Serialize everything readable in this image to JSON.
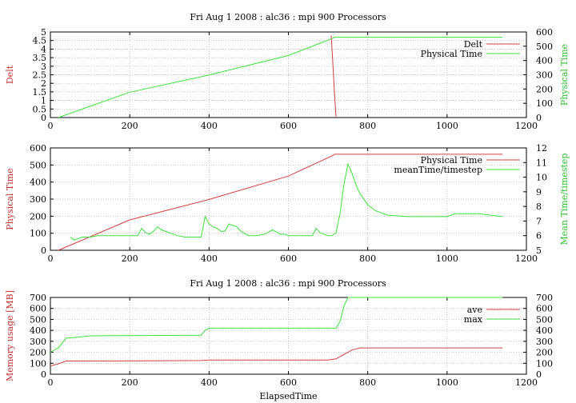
{
  "colors": {
    "red": "#d04040",
    "green": "#40e040",
    "red_label": "#c03030",
    "green_label": "#30c030"
  },
  "chart_data": [
    {
      "type": "line",
      "title": "Fri Aug 1 2008 : alc36 : mpi 900 Processors",
      "xlabel": "",
      "ylabel": "Delt",
      "y2label": "Physical Time",
      "xlim": [
        0,
        1200
      ],
      "ylim": [
        0,
        5
      ],
      "y2lim": [
        0,
        600
      ],
      "xticks": [
        0,
        200,
        400,
        600,
        800,
        1000,
        1200
      ],
      "yticks": [
        0,
        0.5,
        1,
        1.5,
        2,
        2.5,
        3,
        3.5,
        4,
        4.5,
        5
      ],
      "y2ticks": [
        0,
        100,
        200,
        300,
        400,
        500,
        600
      ],
      "grid": true,
      "legend": "top-right",
      "series": [
        {
          "name": "Delt",
          "color": "red",
          "axis": "y",
          "x": [
            708,
            712,
            716,
            720
          ],
          "y": [
            4.8,
            3.2,
            1.5,
            0.05
          ]
        },
        {
          "name": "Physical Time",
          "color": "green",
          "axis": "y2",
          "x": [
            20,
            200,
            380,
            395,
            600,
            712,
            716,
            1140
          ],
          "y": [
            0,
            178,
            286,
            295,
            435,
            556,
            563,
            563
          ]
        }
      ]
    },
    {
      "type": "line",
      "title": "",
      "xlabel": "",
      "ylabel": "Physical Time",
      "y2label": "Mean Time/timestep",
      "xlim": [
        0,
        1200
      ],
      "ylim": [
        0,
        600
      ],
      "y2lim": [
        5,
        12
      ],
      "xticks": [
        0,
        200,
        400,
        600,
        800,
        1000,
        1200
      ],
      "yticks": [
        0,
        100,
        200,
        300,
        400,
        500,
        600
      ],
      "y2ticks": [
        5,
        6,
        7,
        8,
        9,
        10,
        11,
        12
      ],
      "grid": true,
      "legend": "top-right",
      "series": [
        {
          "name": "Physical Time",
          "color": "red",
          "axis": "y",
          "x": [
            20,
            200,
            380,
            395,
            600,
            712,
            716,
            1140
          ],
          "y": [
            0,
            178,
            286,
            295,
            435,
            556,
            563,
            563
          ]
        },
        {
          "name": "meanTime/timestep",
          "color": "green",
          "axis": "y2",
          "x": [
            50,
            60,
            70,
            80,
            100,
            120,
            140,
            160,
            180,
            200,
            210,
            220,
            230,
            240,
            250,
            260,
            270,
            280,
            300,
            320,
            340,
            360,
            380,
            390,
            400,
            410,
            420,
            430,
            440,
            450,
            460,
            470,
            480,
            500,
            520,
            540,
            560,
            580,
            590,
            600,
            620,
            640,
            660,
            670,
            680,
            700,
            710,
            720,
            730,
            740,
            750,
            760,
            770,
            780,
            800,
            820,
            850,
            900,
            950,
            1000,
            1020,
            1050,
            1080,
            1110,
            1140
          ],
          "y": [
            5.9,
            5.7,
            5.8,
            5.9,
            5.9,
            6.0,
            6.0,
            6.0,
            6.0,
            6.0,
            6.0,
            6.0,
            6.5,
            6.2,
            6.1,
            6.3,
            6.6,
            6.4,
            6.2,
            6.0,
            5.9,
            5.9,
            5.9,
            7.3,
            6.8,
            6.6,
            6.5,
            6.3,
            6.3,
            6.8,
            6.7,
            6.6,
            6.3,
            6.0,
            6.0,
            6.1,
            6.4,
            6.1,
            6.1,
            6.0,
            6.0,
            6.0,
            6.0,
            6.5,
            6.2,
            6.0,
            6.0,
            6.2,
            7.5,
            9.5,
            10.9,
            10.3,
            9.5,
            8.9,
            8.1,
            7.7,
            7.4,
            7.3,
            7.3,
            7.3,
            7.5,
            7.5,
            7.5,
            7.4,
            7.3
          ]
        }
      ]
    },
    {
      "type": "line",
      "title": "Fri Aug 1 2008 : alc36 : mpi 900 Processors",
      "xlabel": "ElapsedTime",
      "ylabel": "Memory usage [MB]",
      "y2label": "",
      "xlim": [
        0,
        1200
      ],
      "ylim": [
        0,
        700
      ],
      "y2lim": [
        0,
        700
      ],
      "xticks": [
        0,
        200,
        400,
        600,
        800,
        1000,
        1200
      ],
      "yticks": [
        0,
        100,
        200,
        300,
        400,
        500,
        600,
        700
      ],
      "y2ticks": [
        0,
        100,
        200,
        300,
        400,
        500,
        600,
        700
      ],
      "grid": true,
      "legend": "top-right",
      "series": [
        {
          "name": "ave",
          "color": "red",
          "axis": "y",
          "x": [
            0,
            20,
            40,
            100,
            380,
            400,
            700,
            720,
            740,
            760,
            780,
            1140
          ],
          "y": [
            75,
            95,
            120,
            120,
            125,
            130,
            130,
            140,
            180,
            220,
            240,
            240
          ]
        },
        {
          "name": "max",
          "color": "green",
          "axis": "y",
          "x": [
            0,
            20,
            40,
            60,
            100,
            380,
            390,
            400,
            720,
            730,
            740,
            750,
            1140
          ],
          "y": [
            200,
            240,
            330,
            335,
            350,
            355,
            400,
            420,
            420,
            480,
            620,
            700,
            700
          ]
        }
      ]
    }
  ]
}
